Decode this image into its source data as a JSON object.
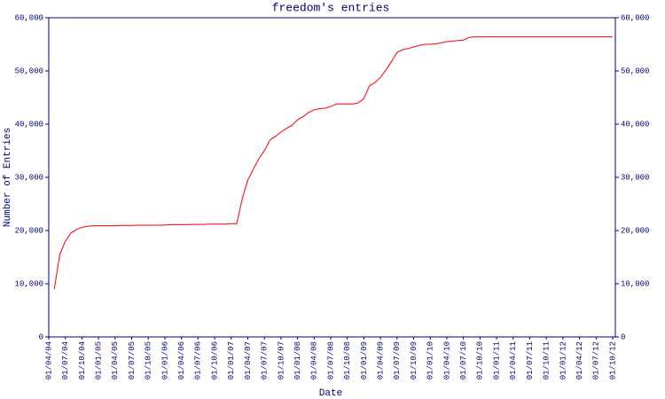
{
  "chart_data": {
    "type": "line",
    "title": "freedom's entries",
    "x_label": "Date",
    "y_label": "Number of Entries",
    "xlim": [
      "01/04/04",
      "01/10/12"
    ],
    "xticks": [
      "01/04/04",
      "01/07/04",
      "01/10/04",
      "01/01/05",
      "01/04/05",
      "01/07/05",
      "01/10/05",
      "01/01/06",
      "01/04/06",
      "01/07/06",
      "01/10/06",
      "01/01/07",
      "01/04/07",
      "01/07/07",
      "01/10/07",
      "01/01/08",
      "01/04/08",
      "01/07/08",
      "01/10/08",
      "01/01/09",
      "01/04/09",
      "01/07/09",
      "01/10/09",
      "01/01/10",
      "01/04/10",
      "01/07/10",
      "01/10/10",
      "01/01/11",
      "01/04/11",
      "01/07/11",
      "01/10/11",
      "01/01/12",
      "01/04/12",
      "01/07/12",
      "01/10/12"
    ],
    "ylim": [
      0,
      60000
    ],
    "yticks": [
      0,
      {
        "value": 10000,
        "label": "10,000"
      },
      {
        "value": 20000,
        "label": "20,000"
      },
      {
        "value": 30000,
        "label": "30,000"
      },
      {
        "value": 40000,
        "label": "40,000"
      },
      {
        "value": 50000,
        "label": "50,000"
      },
      {
        "value": 60000,
        "label": "60,000"
      }
    ],
    "right_axis": true,
    "x": [
      "01/05/04",
      "01/06/04",
      "01/07/04",
      "01/08/04",
      "01/09/04",
      "01/10/04",
      "01/11/04",
      "01/12/04",
      "01/01/05",
      "01/02/05",
      "01/03/05",
      "01/04/05",
      "01/05/05",
      "01/06/05",
      "01/07/05",
      "01/08/05",
      "01/09/05",
      "01/10/05",
      "01/11/05",
      "01/12/05",
      "01/01/06",
      "01/02/06",
      "01/03/06",
      "01/04/06",
      "01/05/06",
      "01/06/06",
      "01/07/06",
      "01/08/06",
      "01/09/06",
      "01/10/06",
      "01/11/06",
      "01/12/06",
      "01/01/07",
      "01/02/07",
      "01/03/07",
      "01/04/07",
      "01/05/07",
      "01/06/07",
      "01/07/07",
      "01/08/07",
      "01/09/07",
      "01/10/07",
      "01/11/07",
      "01/12/07",
      "01/01/08",
      "01/02/08",
      "01/03/08",
      "01/04/08",
      "01/05/08",
      "01/06/08",
      "01/07/08",
      "01/08/08",
      "01/09/08",
      "01/10/08",
      "01/11/08",
      "01/12/08",
      "01/01/09",
      "01/02/09",
      "01/03/09",
      "01/04/09",
      "01/05/09",
      "01/06/09",
      "01/07/09",
      "01/08/09",
      "01/09/09",
      "01/10/09",
      "01/11/09",
      "01/12/09",
      "01/01/10",
      "01/02/10",
      "01/03/10",
      "01/04/10",
      "01/05/10",
      "01/06/10",
      "01/07/10",
      "01/08/10",
      "01/09/10",
      "01/10/10",
      "01/11/10",
      "01/12/10",
      "01/01/11",
      "01/02/11",
      "01/03/11",
      "01/04/11",
      "01/05/11",
      "01/06/11",
      "01/07/11",
      "01/08/11",
      "01/09/11",
      "01/10/11",
      "01/11/11",
      "01/12/11",
      "01/01/12",
      "01/02/12",
      "01/03/12",
      "01/04/12",
      "01/05/12",
      "01/06/12",
      "01/07/12",
      "01/08/12",
      "01/09/12",
      "01/10/12"
    ],
    "series": [
      {
        "color": "#ff0000",
        "values": [
          9000,
          15500,
          18000,
          19500,
          20200,
          20600,
          20800,
          20900,
          20900,
          20900,
          20900,
          20900,
          20950,
          20950,
          20950,
          21000,
          21000,
          21000,
          21000,
          21000,
          21050,
          21100,
          21100,
          21100,
          21100,
          21150,
          21150,
          21150,
          21200,
          21200,
          21200,
          21200,
          21300,
          21300,
          26000,
          29500,
          31500,
          33500,
          35000,
          37000,
          37700,
          38500,
          39200,
          39800,
          40800,
          41400,
          42200,
          42700,
          42900,
          43000,
          43300,
          43800,
          43800,
          43800,
          43800,
          44000,
          44800,
          47200,
          47800,
          48800,
          50200,
          51800,
          53500,
          54000,
          54200,
          54500,
          54800,
          55000,
          55000,
          55100,
          55300,
          55500,
          55600,
          55700,
          55800,
          56300,
          56400,
          56400,
          56400,
          56400,
          56400,
          56400,
          56400,
          56400,
          56400,
          56400,
          56400,
          56400,
          56400,
          56400,
          56400,
          56400,
          56400,
          56400,
          56400,
          56400,
          56400,
          56400,
          56400,
          56400,
          56400,
          56400
        ]
      }
    ]
  }
}
